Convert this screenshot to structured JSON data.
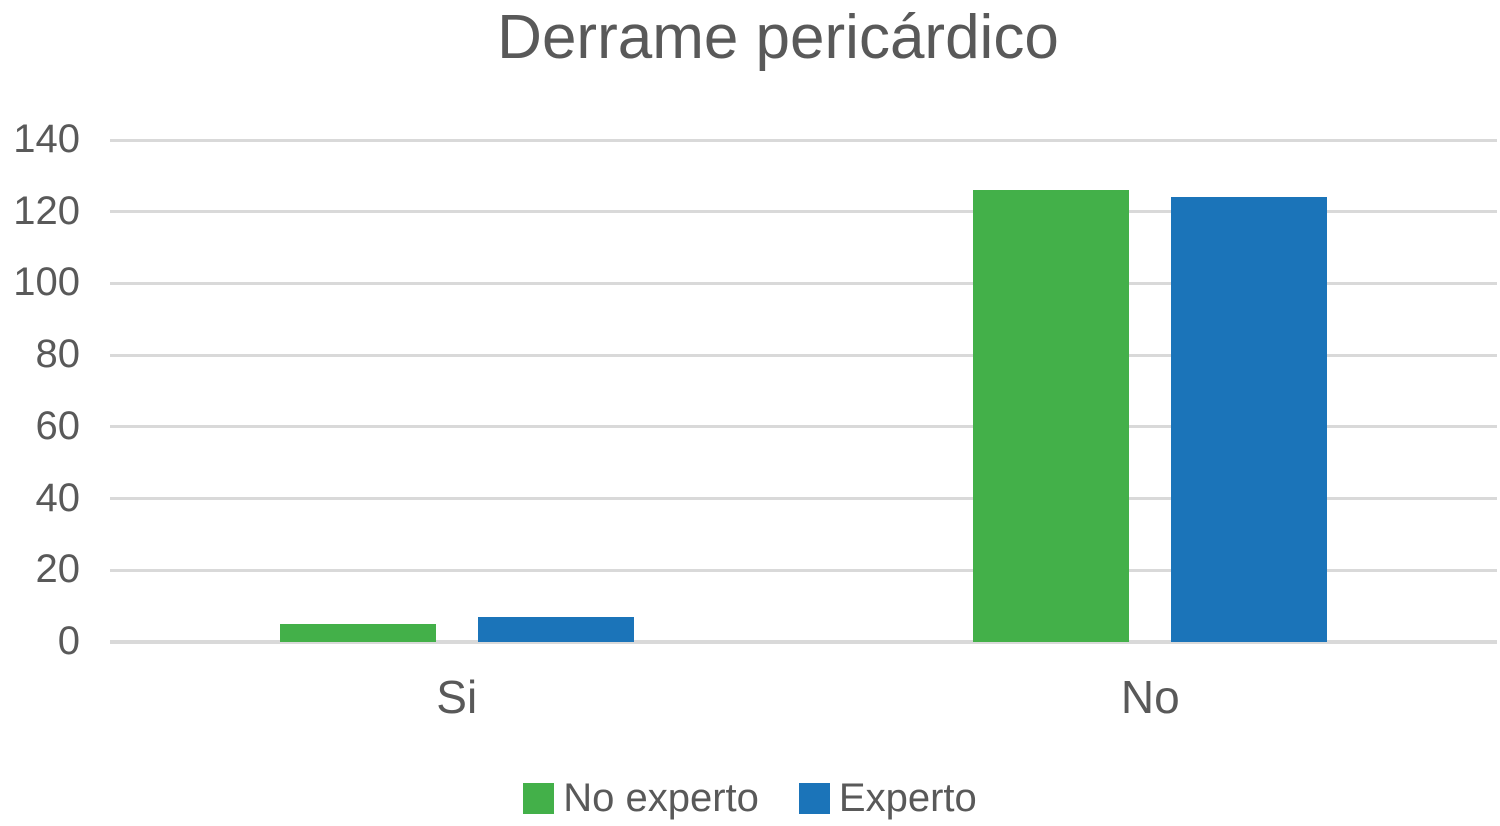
{
  "chart_data": {
    "type": "bar",
    "title": "Derrame pericárdico",
    "categories": [
      "Si",
      "No"
    ],
    "series": [
      {
        "name": "No experto",
        "color": "#43B049",
        "values": [
          5,
          126
        ]
      },
      {
        "name": "Experto",
        "color": "#1B74B9",
        "values": [
          7,
          124
        ]
      }
    ],
    "xlabel": "",
    "ylabel": "",
    "ylim": [
      0,
      140
    ],
    "yticks": [
      0,
      20,
      40,
      60,
      80,
      100,
      120,
      140
    ],
    "grid": true,
    "legend_position": "bottom"
  },
  "style": {
    "title_color": "#595959",
    "axis_text_color": "#595959",
    "gridline_color": "#D9D9D9",
    "background": "#FFFFFF"
  }
}
